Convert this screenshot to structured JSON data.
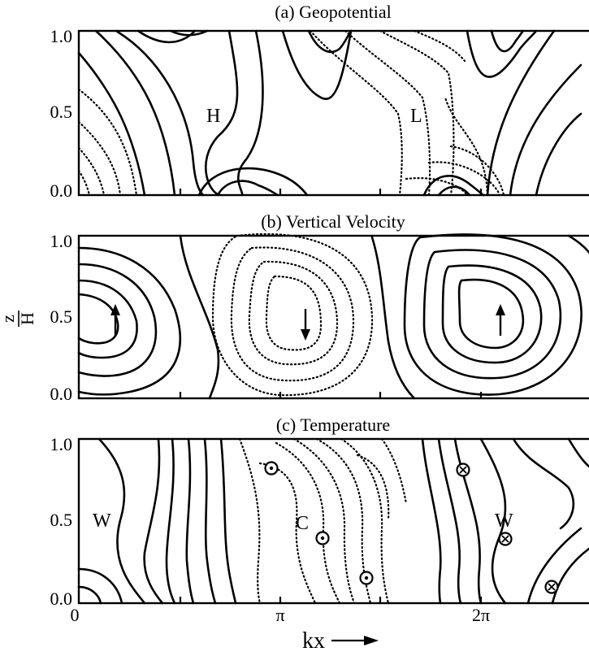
{
  "panels": [
    {
      "title": "(a) Geopotential",
      "labels": [
        "H",
        "L"
      ],
      "y_ticks": [
        "1.0",
        "0.5",
        "0.0"
      ]
    },
    {
      "title": "(b) Vertical Velocity",
      "arrows": [
        "up",
        "down",
        "up"
      ],
      "y_ticks": [
        "1.0",
        "0.5",
        "0.0"
      ]
    },
    {
      "title": "(c) Temperature",
      "labels": [
        "W",
        "C",
        "W"
      ],
      "markers": [
        "dot",
        "dot",
        "dot",
        "cross",
        "cross",
        "cross"
      ],
      "y_ticks": [
        "1.0",
        "0.5",
        "0.0"
      ]
    }
  ],
  "x_axis": {
    "ticks": [
      "0",
      "π",
      "2π"
    ],
    "label": "kx",
    "arrow": "→"
  },
  "y_axis": {
    "label_top": "z",
    "label_bottom": "H"
  }
}
